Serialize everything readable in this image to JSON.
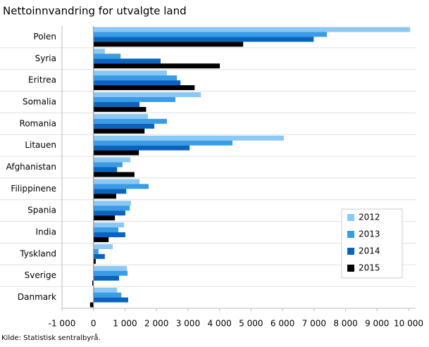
{
  "chart_data": {
    "type": "hbar",
    "title": "Nettoinnvandring for utvalgte land",
    "source": "Kilde: Statistisk sentralbyrå.",
    "categories": [
      "Polen",
      "Syria",
      "Eritrea",
      "Somalia",
      "Romania",
      "Litauen",
      "Afghanistan",
      "Filippinene",
      "Spania",
      "India",
      "Tyskland",
      "Sverige",
      "Danmark"
    ],
    "series": [
      {
        "name": "2012",
        "color": "#8cc8f4",
        "values": [
          10050,
          360,
          2330,
          3410,
          1730,
          6040,
          1170,
          1460,
          1190,
          970,
          610,
          1060,
          750
        ]
      },
      {
        "name": "2013",
        "color": "#3a9be6",
        "values": [
          7410,
          860,
          2650,
          2600,
          2330,
          4410,
          920,
          1750,
          1150,
          790,
          160,
          1080,
          880
        ]
      },
      {
        "name": "2014",
        "color": "#0a64be",
        "values": [
          6990,
          2130,
          2760,
          1460,
          1930,
          3050,
          750,
          1040,
          1010,
          1010,
          360,
          810,
          1100
        ]
      },
      {
        "name": "2015",
        "color": "#000000",
        "values": [
          4750,
          4010,
          3210,
          1670,
          1620,
          1440,
          1300,
          720,
          680,
          480,
          70,
          -40,
          -110
        ]
      }
    ],
    "xlim": [
      -1000,
      10000
    ],
    "xticks": [
      {
        "value": -1000,
        "label": "-1 000"
      },
      0,
      {
        "value": 1000,
        "label": "1 000"
      },
      {
        "value": 2000,
        "label": "2 000"
      },
      {
        "value": 3000,
        "label": "3 000"
      },
      {
        "value": 4000,
        "label": "4 000"
      },
      {
        "value": 5000,
        "label": "5 000"
      },
      {
        "value": 6000,
        "label": "6 000"
      },
      {
        "value": 7000,
        "label": "7 000"
      },
      {
        "value": 8000,
        "label": "8 000"
      },
      {
        "value": 9000,
        "label": "9 000"
      },
      {
        "value": 10000,
        "label": "10 000"
      }
    ],
    "legend": "lower right"
  }
}
